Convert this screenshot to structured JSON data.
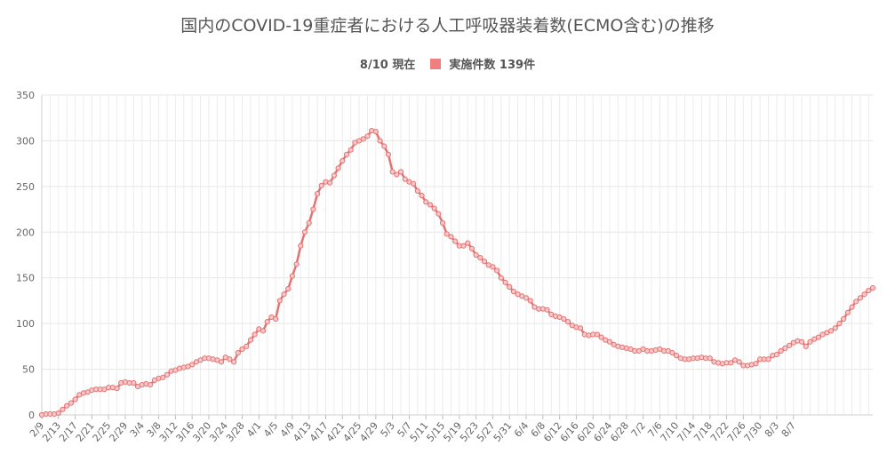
{
  "chart_title": "国内のCOVID-19重症者における人工呼吸器装着数(ECMO含む)の推移",
  "legend": {
    "date_label": "8/10 現在",
    "series_label": "実施件数 139件",
    "color": "#f08080"
  },
  "chart_data": {
    "type": "line",
    "title": "国内のCOVID-19重症者における人工呼吸器装着数(ECMO含む)の推移",
    "xlabel": "",
    "ylabel": "",
    "ylim": [
      0,
      350
    ],
    "yticks": [
      0,
      50,
      100,
      150,
      200,
      250,
      300,
      350
    ],
    "grid": true,
    "legend_position": "top-center",
    "line_color": "#e57373",
    "x_tick_labels": [
      "2/9",
      "2/13",
      "2/17",
      "2/21",
      "2/25",
      "2/29",
      "3/4",
      "3/8",
      "3/12",
      "3/16",
      "3/20",
      "3/24",
      "3/28",
      "4/1",
      "4/5",
      "4/9",
      "4/13",
      "4/17",
      "4/21",
      "4/25",
      "4/29",
      "5/3",
      "5/7",
      "5/11",
      "5/15",
      "5/19",
      "5/23",
      "5/27",
      "5/31",
      "6/4",
      "6/8",
      "6/12",
      "6/16",
      "6/20",
      "6/24",
      "6/28",
      "7/2",
      "7/6",
      "7/10",
      "7/14",
      "7/18",
      "7/22",
      "7/26",
      "7/30",
      "8/3",
      "8/7"
    ],
    "series": [
      {
        "name": "実施件数",
        "start_date": "2/9",
        "values": [
          0,
          1,
          1,
          1,
          2,
          6,
          10,
          13,
          17,
          22,
          24,
          25,
          27,
          28,
          28,
          28,
          30,
          30,
          29,
          35,
          36,
          35,
          35,
          31,
          33,
          34,
          33,
          38,
          40,
          41,
          44,
          48,
          49,
          51,
          52,
          53,
          55,
          58,
          60,
          62,
          62,
          61,
          60,
          58,
          63,
          61,
          58,
          68,
          72,
          75,
          82,
          88,
          94,
          92,
          102,
          107,
          105,
          125,
          132,
          138,
          152,
          165,
          185,
          200,
          210,
          225,
          242,
          251,
          255,
          254,
          262,
          270,
          278,
          285,
          290,
          298,
          300,
          302,
          305,
          311,
          310,
          300,
          294,
          285,
          266,
          263,
          266,
          258,
          255,
          253,
          245,
          240,
          233,
          230,
          226,
          220,
          210,
          198,
          195,
          190,
          185,
          185,
          188,
          182,
          175,
          172,
          168,
          164,
          162,
          158,
          150,
          145,
          140,
          135,
          132,
          130,
          128,
          125,
          118,
          116,
          116,
          115,
          110,
          108,
          107,
          105,
          102,
          98,
          96,
          95,
          88,
          87,
          88,
          88,
          85,
          82,
          80,
          77,
          75,
          74,
          73,
          72,
          70,
          70,
          72,
          70,
          70,
          71,
          72,
          70,
          70,
          68,
          65,
          62,
          61,
          61,
          62,
          62,
          63,
          62,
          62,
          58,
          57,
          56,
          57,
          57,
          60,
          58,
          54,
          54,
          55,
          56,
          61,
          61,
          61,
          65,
          66,
          70,
          73,
          76,
          79,
          81,
          80,
          75,
          80,
          83,
          85,
          88,
          90,
          92,
          95,
          100,
          105,
          112,
          118,
          124,
          128,
          132,
          136,
          139
        ]
      }
    ]
  }
}
